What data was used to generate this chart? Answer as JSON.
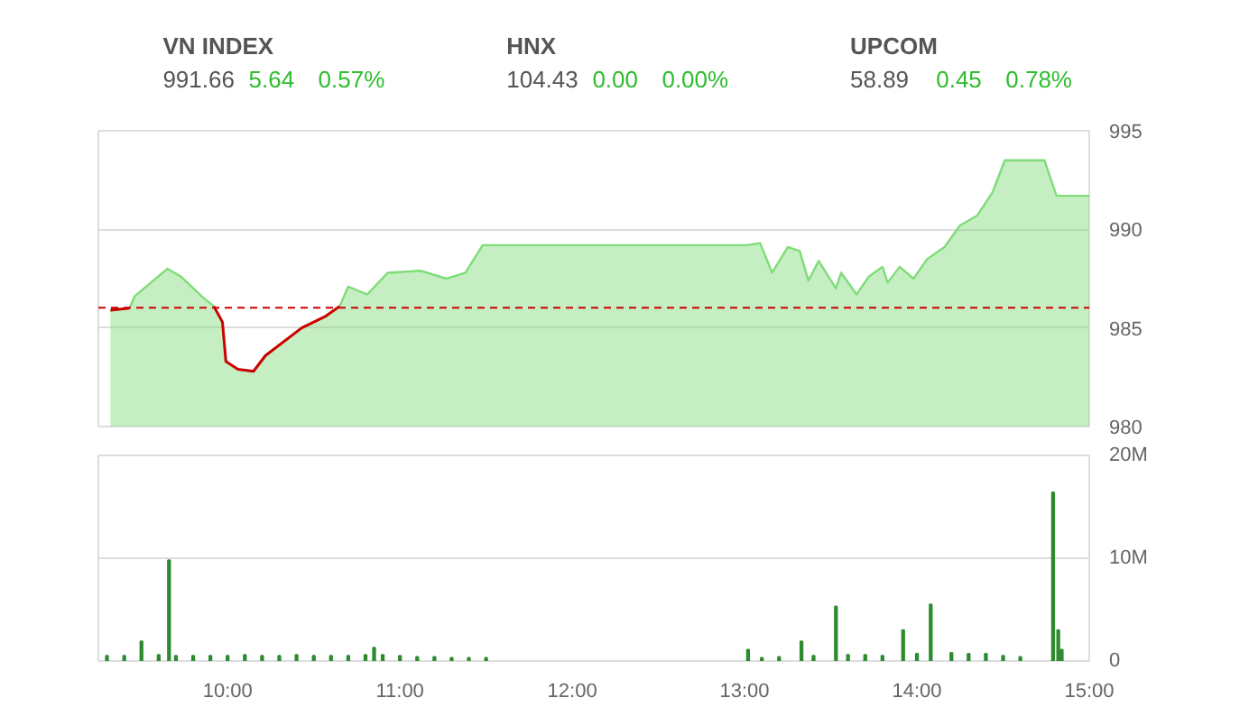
{
  "chart_data": [
    {
      "type": "other",
      "data_labels": true,
      "categories": [
        "VN INDEX",
        "HNX",
        "UPCOM"
      ],
      "series": [
        {
          "color": "#555555",
          "values": [
            991.66,
            104.43,
            58.89
          ]
        },
        {
          "color": "#2ebd2e",
          "values": [
            5.64,
            0.0,
            0.45
          ],
          "value_labels": [
            "5.64",
            "0.00",
            "0.45"
          ]
        },
        {
          "color": "#2ebd2e",
          "values": [
            0.57,
            0.0,
            0.78
          ],
          "value_labels": [
            "0.57%",
            "0.00%",
            "0.78%"
          ]
        }
      ]
    },
    {
      "type": "area",
      "xlim": [
        9.25,
        15.0
      ],
      "ylim": [
        980,
        995
      ],
      "yticks": [
        980,
        985,
        990,
        995
      ],
      "grid": "y",
      "tick_labels": "y",
      "ref_lines": [
        {
          "axis": "y",
          "value": 986.02,
          "color": "#cc0000",
          "line_style": "dashed"
        }
      ],
      "series": [
        {
          "type": "area",
          "color": "#7fdc78",
          "x": [
            9.32,
            9.43,
            9.46,
            9.65,
            9.73,
            9.85,
            9.92,
            9.97,
            9.99,
            10.06,
            10.15,
            10.22,
            10.43,
            10.57,
            10.65,
            10.7,
            10.81,
            10.93,
            11.12,
            11.27,
            11.38,
            11.48,
            13.01,
            13.09,
            13.16,
            13.25,
            13.32,
            13.37,
            13.43,
            13.53,
            13.56,
            13.65,
            13.72,
            13.8,
            13.83,
            13.9,
            13.98,
            14.06,
            14.16,
            14.25,
            14.35,
            14.44,
            14.51,
            14.74,
            14.81,
            15.0
          ],
          "values": [
            985.9,
            986.0,
            986.6,
            988.0,
            987.6,
            986.6,
            986.1,
            985.3,
            983.3,
            982.9,
            982.8,
            983.6,
            985.0,
            985.6,
            986.1,
            987.1,
            986.7,
            987.8,
            987.9,
            987.5,
            987.8,
            989.2,
            989.2,
            989.3,
            987.8,
            989.1,
            988.9,
            987.4,
            988.4,
            987.0,
            987.8,
            986.7,
            987.6,
            988.1,
            987.3,
            988.1,
            987.5,
            988.5,
            989.1,
            990.2,
            990.7,
            991.9,
            993.5,
            993.5,
            991.7,
            991.7
          ]
        },
        {
          "type": "line",
          "color": "#cc0000",
          "x": [
            9.32,
            9.43,
            9.45,
            9.92,
            9.97,
            9.99,
            10.06,
            10.15,
            10.22,
            10.43,
            10.57,
            10.65
          ],
          "values": [
            985.9,
            986.0,
            null,
            986.1,
            985.3,
            983.3,
            982.9,
            982.8,
            983.6,
            985.0,
            985.6,
            986.1
          ]
        }
      ]
    },
    {
      "type": "bar",
      "color": "#2e8b2e",
      "xlim": [
        9.25,
        15.0
      ],
      "ylim": [
        0,
        20
      ],
      "grid": "y",
      "xticks": [
        {
          "value": 10,
          "label": "10:00"
        },
        {
          "value": 11,
          "label": "11:00"
        },
        {
          "value": 12,
          "label": "12:00"
        },
        {
          "value": 13,
          "label": "13:00"
        },
        {
          "value": 14,
          "label": "14:00"
        },
        {
          "value": 15,
          "label": "15:00"
        }
      ],
      "yticks": [
        0,
        {
          "value": 10,
          "label": "10M"
        },
        {
          "value": 20,
          "label": "20M"
        }
      ],
      "x": [
        9.3,
        9.4,
        9.5,
        9.6,
        9.66,
        9.7,
        9.8,
        9.9,
        10.0,
        10.1,
        10.2,
        10.3,
        10.4,
        10.5,
        10.6,
        10.7,
        10.8,
        10.85,
        10.9,
        11.0,
        11.1,
        11.2,
        11.3,
        11.4,
        11.5,
        13.02,
        13.1,
        13.2,
        13.33,
        13.4,
        13.53,
        13.6,
        13.7,
        13.8,
        13.92,
        14.0,
        14.08,
        14.2,
        14.3,
        14.4,
        14.5,
        14.6,
        14.79,
        14.82,
        14.84
      ],
      "values": [
        0.5,
        0.5,
        1.9,
        0.6,
        9.8,
        0.5,
        0.5,
        0.5,
        0.5,
        0.6,
        0.5,
        0.5,
        0.6,
        0.5,
        0.5,
        0.5,
        0.6,
        1.3,
        0.6,
        0.5,
        0.4,
        0.4,
        0.3,
        0.3,
        0.3,
        1.1,
        0.3,
        0.4,
        1.9,
        0.5,
        5.3,
        0.6,
        0.6,
        0.5,
        3.0,
        0.7,
        5.5,
        0.8,
        0.7,
        0.7,
        0.5,
        0.4,
        16.4,
        3.0,
        1.1
      ]
    }
  ]
}
